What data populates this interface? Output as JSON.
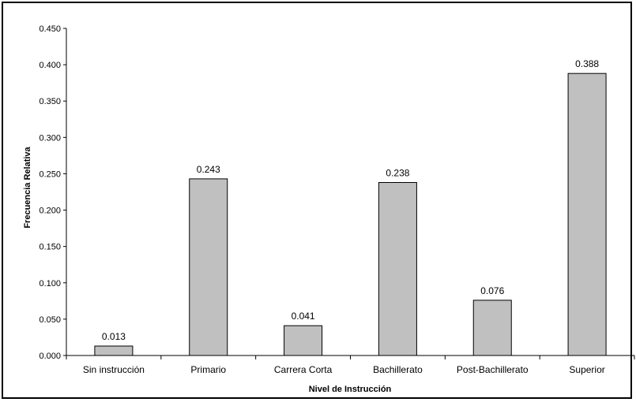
{
  "chart_data": {
    "type": "bar",
    "title": "",
    "xlabel": "Nivel de Instrucción",
    "ylabel": "Frecuencia Relativa",
    "categories": [
      "Sin instrucción",
      "Primario",
      "Carrera Corta",
      "Bachillerato",
      "Post-Bachillerato",
      "Superior"
    ],
    "values": [
      0.013,
      0.243,
      0.041,
      0.238,
      0.076,
      0.388
    ],
    "value_labels": [
      "0.013",
      "0.243",
      "0.041",
      "0.238",
      "0.076",
      "0.388"
    ],
    "ylim": [
      0,
      0.45
    ],
    "yticks": [
      "0.000",
      "0.050",
      "0.100",
      "0.150",
      "0.200",
      "0.250",
      "0.300",
      "0.350",
      "0.400",
      "0.450"
    ],
    "grid": false,
    "legend": "none",
    "bar_color": "#c0c0c0",
    "bar_edge_color": "#000000"
  }
}
